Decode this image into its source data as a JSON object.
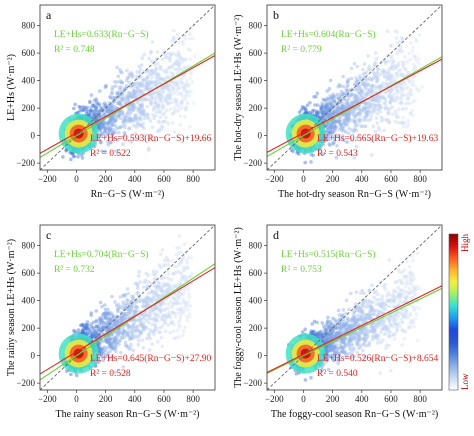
{
  "chart_data": [
    {
      "type": "scatter",
      "panel_label": "a",
      "xlabel": "Rn−G−S (W·m⁻²)",
      "ylabel": "LE+Hs (W·m⁻²)",
      "xlim": [
        -250,
        950
      ],
      "ylim": [
        -250,
        950
      ],
      "xticks": [
        "−200",
        "0",
        "200",
        "400",
        "600",
        "800"
      ],
      "yticks": [
        "−200",
        "0",
        "200",
        "400",
        "600",
        "800"
      ],
      "fit_origin": {
        "label": "LE+Hs=0.633(Rn−G−S)",
        "r2_label": "R² = 0.748",
        "slope": 0.633,
        "intercept": 0,
        "r2": 0.748,
        "color": "#6bd13a"
      },
      "fit_linear": {
        "label": "LE+Hs=0.593(Rn−G−S)+19.66",
        "r2_label": "R² = 0.522",
        "slope": 0.593,
        "intercept": 19.66,
        "r2": 0.522,
        "color": "#e8221e"
      },
      "one_to_one": true
    },
    {
      "type": "scatter",
      "panel_label": "b",
      "xlabel": "The hot-dry season Rn−G−S (W·m⁻²)",
      "ylabel": "The hot-dry season LE+Hs (W·m⁻²)",
      "xlim": [
        -250,
        950
      ],
      "ylim": [
        -250,
        950
      ],
      "xticks": [
        "−200",
        "0",
        "200",
        "400",
        "600",
        "800"
      ],
      "yticks": [
        "−200",
        "0",
        "200",
        "400",
        "600",
        "800"
      ],
      "fit_origin": {
        "label": "LE+Hs=0.604(Rn−G−S)",
        "r2_label": "R² = 0.779",
        "slope": 0.604,
        "intercept": 0,
        "r2": 0.779,
        "color": "#6bd13a"
      },
      "fit_linear": {
        "label": "LE+Hs=0.565(Rn−G−S)+19.63",
        "r2_label": "R² = 0.543",
        "slope": 0.565,
        "intercept": 19.63,
        "r2": 0.543,
        "color": "#e8221e"
      },
      "one_to_one": true
    },
    {
      "type": "scatter",
      "panel_label": "c",
      "xlabel": "The rainy season Rn−G−S (W·m⁻²)",
      "ylabel": "The rainy season LE+Hs (W·m⁻²)",
      "xlim": [
        -250,
        950
      ],
      "ylim": [
        -250,
        950
      ],
      "xticks": [
        "−200",
        "0",
        "200",
        "400",
        "600",
        "800"
      ],
      "yticks": [
        "−200",
        "0",
        "200",
        "400",
        "600",
        "800"
      ],
      "fit_origin": {
        "label": "LE+Hs=0.704(Rn−G−S)",
        "r2_label": "R² = 0.732",
        "slope": 0.704,
        "intercept": 0,
        "r2": 0.732,
        "color": "#6bd13a"
      },
      "fit_linear": {
        "label": "LE+Hs=0.645(Rn−G−S)+27.90",
        "r2_label": "R² = 0.528",
        "slope": 0.645,
        "intercept": 27.9,
        "r2": 0.528,
        "color": "#e8221e"
      },
      "one_to_one": true
    },
    {
      "type": "scatter",
      "panel_label": "d",
      "xlabel": "The foggy-cool season Rn−G−S (W·m⁻²)",
      "ylabel": "The foggy-cool season LE+Hs (W·m⁻²)",
      "xlim": [
        -250,
        950
      ],
      "ylim": [
        -250,
        950
      ],
      "xticks": [
        "−200",
        "0",
        "200",
        "400",
        "600",
        "800"
      ],
      "yticks": [
        "−200",
        "0",
        "200",
        "400",
        "600",
        "800"
      ],
      "fit_origin": {
        "label": "LE+Hs=0.515(Rn−G−S)",
        "r2_label": "R² = 0.753",
        "slope": 0.515,
        "intercept": 0,
        "r2": 0.753,
        "color": "#6bd13a"
      },
      "fit_linear": {
        "label": "LE+Hs=0.526(Rn−G−S)+8.654",
        "r2_label": "R² = 0.540",
        "slope": 0.526,
        "intercept": 8.654,
        "r2": 0.54,
        "color": "#e8221e"
      },
      "one_to_one": true
    }
  ],
  "colorbar": {
    "high_label": "High",
    "low_label": "Low",
    "colors": [
      "#ffffff",
      "#c9daf4",
      "#8fb0e8",
      "#4f80dc",
      "#2b56d2",
      "#1f47e0",
      "#1f9cf0",
      "#32e0d8",
      "#9ef06a",
      "#f5f03c",
      "#ffb12a",
      "#ff5a1e",
      "#d60d0d",
      "#8b0000"
    ]
  }
}
